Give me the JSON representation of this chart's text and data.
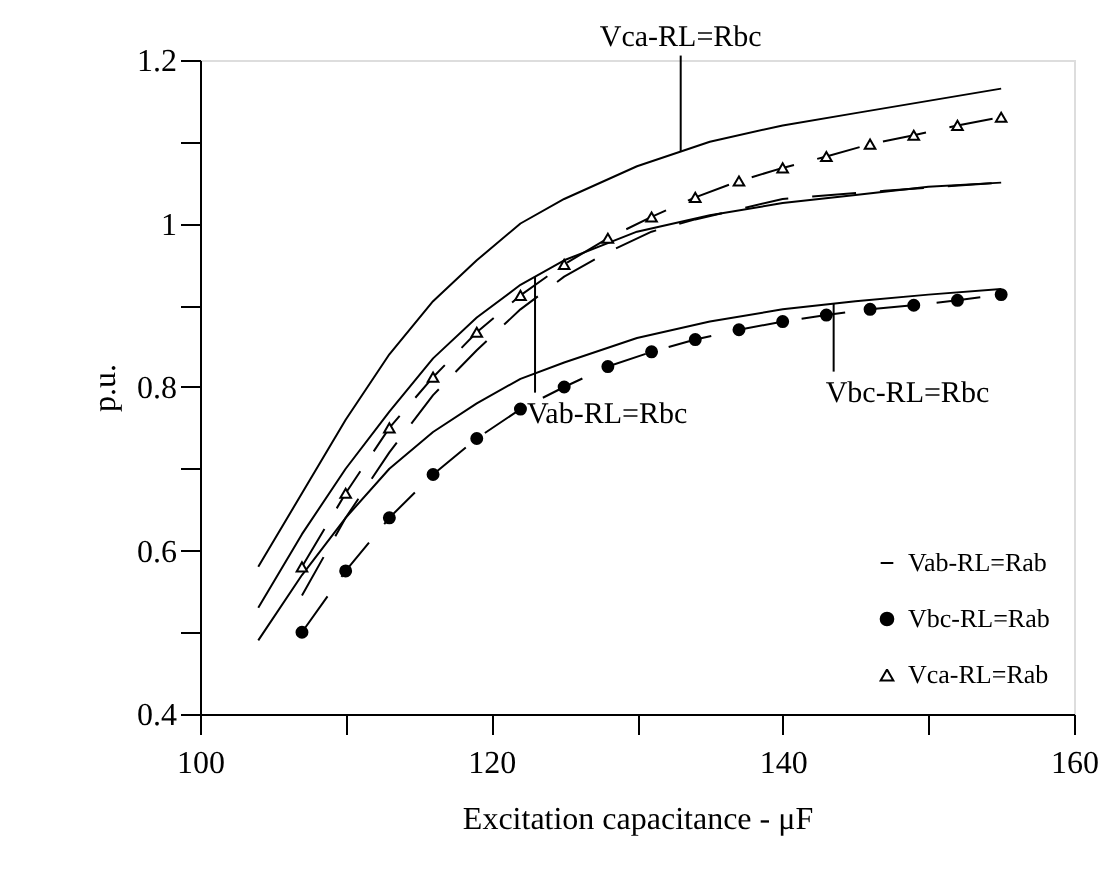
{
  "chart_data": {
    "type": "line",
    "xlabel": "Excitation capacitance - μF",
    "ylabel": "p.u.",
    "xlim": [
      100,
      160
    ],
    "xticks": [
      100,
      {
        "value": 110,
        "label": null
      },
      120,
      {
        "value": 130,
        "label": null
      },
      140,
      {
        "value": 150,
        "label": null
      },
      160
    ],
    "ylim": [
      0.4,
      1.2
    ],
    "yticks": [
      0.4,
      {
        "value": 0.5,
        "label": null
      },
      0.6,
      {
        "value": 0.7,
        "label": null
      },
      0.8,
      {
        "value": 0.9,
        "label": null
      },
      1,
      {
        "value": 1.1,
        "label": null
      },
      1.2
    ],
    "grid": false,
    "legend": "bottom right",
    "series": [
      {
        "color": "#000000",
        "line_style": "solid",
        "marker": "none",
        "x": [
          104,
          107,
          110,
          113,
          116,
          119,
          122,
          125,
          130,
          135,
          140,
          145,
          150,
          155
        ],
        "values": [
          0.58,
          0.67,
          0.76,
          0.84,
          0.905,
          0.955,
          1.0,
          1.03,
          1.07,
          1.1,
          1.12,
          1.135,
          1.15,
          1.165
        ]
      },
      {
        "color": "#000000",
        "line_style": "solid",
        "marker": "none",
        "x": [
          104,
          107,
          110,
          113,
          116,
          119,
          122,
          125,
          130,
          135,
          140,
          145,
          150,
          155
        ],
        "values": [
          0.53,
          0.62,
          0.7,
          0.77,
          0.835,
          0.885,
          0.925,
          0.955,
          0.99,
          1.01,
          1.025,
          1.035,
          1.045,
          1.05
        ]
      },
      {
        "color": "#000000",
        "line_style": "solid",
        "marker": "none",
        "x": [
          104,
          107,
          110,
          113,
          116,
          119,
          122,
          125,
          130,
          135,
          140,
          145,
          150,
          155
        ],
        "values": [
          0.49,
          0.57,
          0.64,
          0.7,
          0.745,
          0.78,
          0.81,
          0.83,
          0.86,
          0.88,
          0.895,
          0.905,
          0.913,
          0.92
        ]
      },
      {
        "name": "Vab-RL=Rab",
        "color": "#000000",
        "line_style": "dashed",
        "marker": "none",
        "x": [
          107,
          110,
          113,
          116,
          119,
          122,
          125,
          128,
          131,
          134,
          140,
          147,
          155
        ],
        "values": [
          0.545,
          0.64,
          0.72,
          0.79,
          0.845,
          0.895,
          0.935,
          0.965,
          0.99,
          1.005,
          1.03,
          1.04,
          1.05
        ]
      },
      {
        "name": "Vbc-RL=Rab",
        "color": "#000000",
        "line_style": "dashed",
        "marker": "circle",
        "x": [
          107,
          110,
          113,
          116,
          119,
          122,
          125,
          128,
          131,
          134,
          137,
          140,
          143,
          146,
          149,
          152,
          155
        ],
        "values": [
          0.5,
          0.575,
          0.64,
          0.693,
          0.737,
          0.773,
          0.8,
          0.825,
          0.843,
          0.858,
          0.87,
          0.88,
          0.888,
          0.895,
          0.9,
          0.906,
          0.913
        ]
      },
      {
        "name": "Vca-RL=Rab",
        "color": "#000000",
        "line_style": "dashed",
        "marker": "triangle",
        "x": [
          107,
          110,
          113,
          116,
          119,
          122,
          125,
          128,
          131,
          134,
          137,
          140,
          143,
          146,
          149,
          152,
          155
        ],
        "values": [
          0.58,
          0.67,
          0.75,
          0.812,
          0.867,
          0.912,
          0.95,
          0.982,
          1.008,
          1.032,
          1.052,
          1.068,
          1.082,
          1.097,
          1.108,
          1.12,
          1.13
        ]
      }
    ],
    "annotations": [
      {
        "text": "Vca-RL=Rbc",
        "x": 133,
        "y": 1.088
      },
      {
        "text": "Vab-RL=Rbc",
        "x": 123,
        "y": 0.935
      },
      {
        "text": "Vbc-RL=Rbc",
        "x": 143.5,
        "y": 0.902
      }
    ]
  }
}
